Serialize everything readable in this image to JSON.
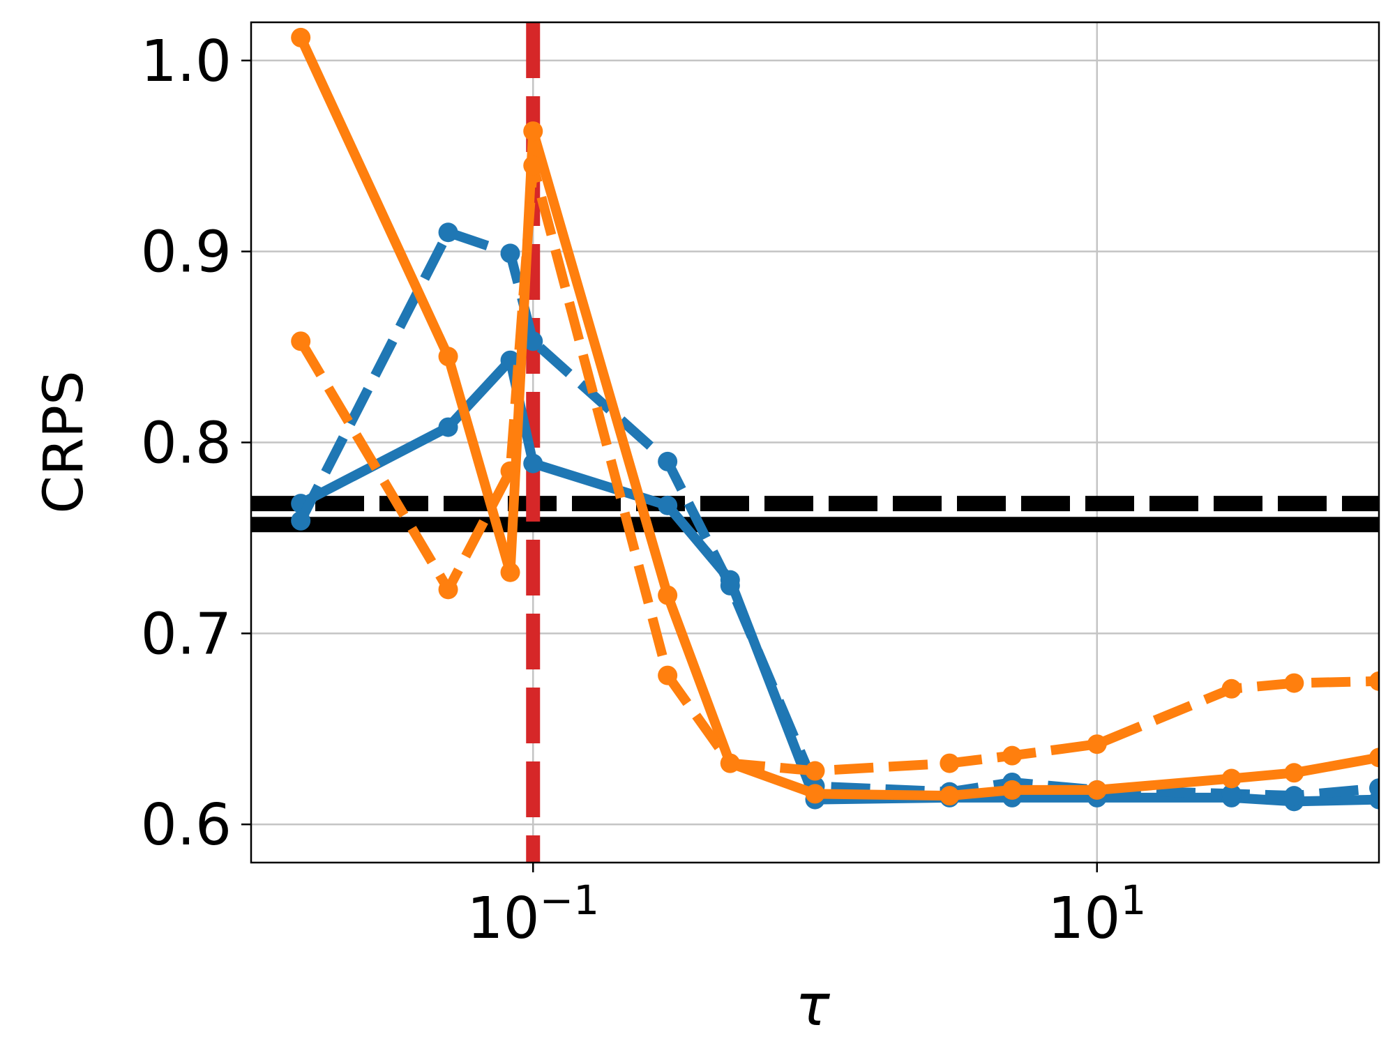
{
  "chart_data": {
    "type": "line",
    "title": "",
    "xlabel": "τ",
    "ylabel": "CRPS",
    "xscale": "log",
    "xlim": [
      0.01,
      100
    ],
    "ylim": [
      0.58,
      1.02
    ],
    "grid": true,
    "legend": "none",
    "yticks": [
      {
        "value": 0.6,
        "label": "0.6"
      },
      {
        "value": 0.7,
        "label": "0.7"
      },
      {
        "value": 0.8,
        "label": "0.8"
      },
      {
        "value": 0.9,
        "label": "0.9"
      },
      {
        "value": 1.0,
        "label": "1.0"
      }
    ],
    "xticks": [
      {
        "value": 0.1,
        "base": "10",
        "exp": "−1"
      },
      {
        "value": 10,
        "base": "10",
        "exp": "1"
      }
    ],
    "reference_lines": [
      {
        "orientation": "horizontal",
        "value": 0.757,
        "color": "#000000",
        "style": "solid"
      },
      {
        "orientation": "horizontal",
        "value": 0.768,
        "color": "#000000",
        "style": "dashed"
      },
      {
        "orientation": "vertical",
        "value": 0.1,
        "color": "#d62728",
        "style": "dashed"
      }
    ],
    "series": [
      {
        "color": "#1f77b4",
        "style": "solid",
        "width": 14,
        "x": [
          0.015,
          0.05,
          0.083,
          0.1,
          0.3,
          0.5,
          1,
          3,
          5,
          10,
          30,
          50,
          100
        ],
        "y": [
          0.768,
          0.808,
          0.843,
          0.789,
          0.767,
          0.728,
          0.613,
          0.614,
          0.614,
          0.614,
          0.614,
          0.612,
          0.613
        ]
      },
      {
        "color": "#1f77b4",
        "style": "dashed",
        "width": 14,
        "x": [
          0.015,
          0.05,
          0.083,
          0.1,
          0.3,
          0.5,
          1,
          3,
          5,
          10,
          30,
          50,
          100
        ],
        "y": [
          0.759,
          0.91,
          0.899,
          0.853,
          0.79,
          0.725,
          0.62,
          0.617,
          0.622,
          0.618,
          0.616,
          0.615,
          0.619
        ]
      },
      {
        "color": "#ff7f0e",
        "style": "solid",
        "width": 14,
        "x": [
          0.015,
          0.05,
          0.083,
          0.1,
          0.3,
          0.5,
          1,
          3,
          5,
          10,
          30,
          50,
          100
        ],
        "y": [
          1.012,
          0.845,
          0.732,
          0.963,
          0.72,
          0.632,
          0.616,
          0.615,
          0.618,
          0.618,
          0.624,
          0.627,
          0.635
        ]
      },
      {
        "color": "#ff7f0e",
        "style": "dashed",
        "width": 14,
        "x": [
          0.015,
          0.05,
          0.083,
          0.1,
          0.3,
          0.5,
          1,
          3,
          5,
          10,
          30,
          50,
          100
        ],
        "y": [
          0.853,
          0.723,
          0.785,
          0.945,
          0.678,
          0.632,
          0.628,
          0.632,
          0.636,
          0.642,
          0.671,
          0.674,
          0.675
        ]
      }
    ]
  }
}
